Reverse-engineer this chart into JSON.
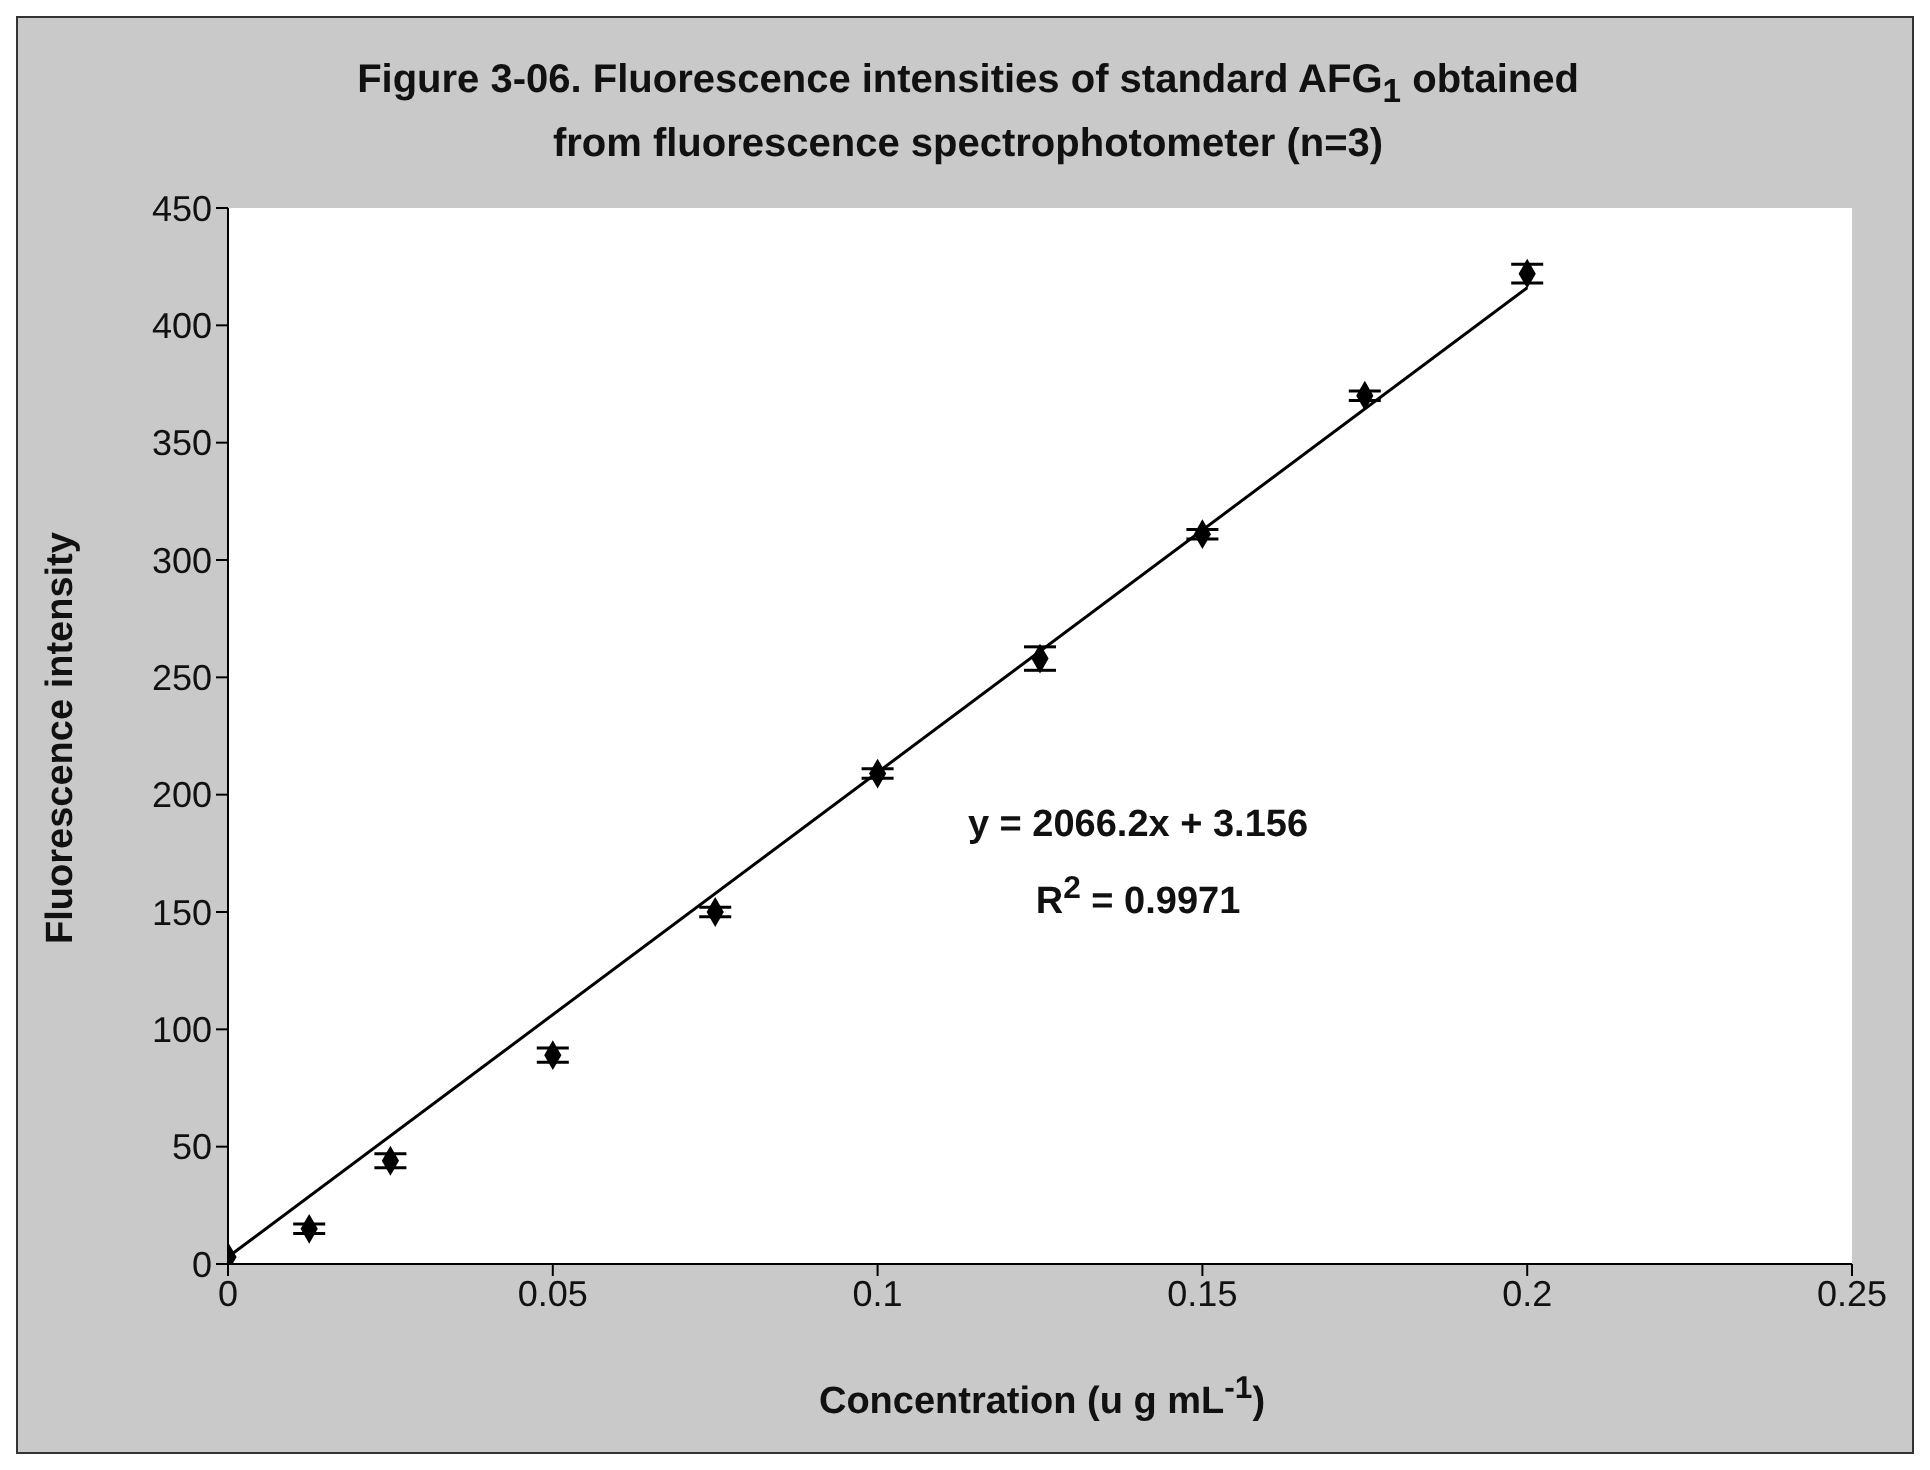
{
  "chart_data": {
    "type": "scatter",
    "title": "Figure 3-06. Fluorescence intensities of standard AFG$_{1}$ obtained from fluorescence spectrophotometer (n=3)",
    "xlabel": "Concentration (u g mL$^{-1}$)",
    "ylabel": "Fluorescence intensity",
    "annotations": [
      "y = 2066.2x + 3.156",
      "R$^{2}$ = 0.9971"
    ],
    "xlim": [
      0,
      0.25
    ],
    "xticks": [
      0,
      0.05,
      0.1,
      0.15,
      0.2,
      0.25
    ],
    "ylim": [
      0,
      450
    ],
    "yticks": [
      0,
      50,
      100,
      150,
      200,
      250,
      300,
      350,
      400,
      450
    ],
    "grid": false,
    "legend": false,
    "series": [
      {
        "color": "#000000",
        "marker": "diamond",
        "x": [
          0,
          0.0125,
          0.025,
          0.05,
          0.075,
          0.1,
          0.125,
          0.15,
          0.175,
          0.2
        ],
        "values": [
          3,
          15,
          44,
          89,
          150,
          209,
          258,
          311,
          370,
          422
        ],
        "errors": [
          null,
          2,
          3,
          3,
          2,
          2,
          5,
          2,
          2,
          4
        ]
      },
      {
        "type": "line",
        "color": "#000000",
        "marker": "none",
        "x": [
          0,
          0.2
        ],
        "values": [
          3,
          416
        ],
        "line_style": "solid"
      }
    ]
  }
}
